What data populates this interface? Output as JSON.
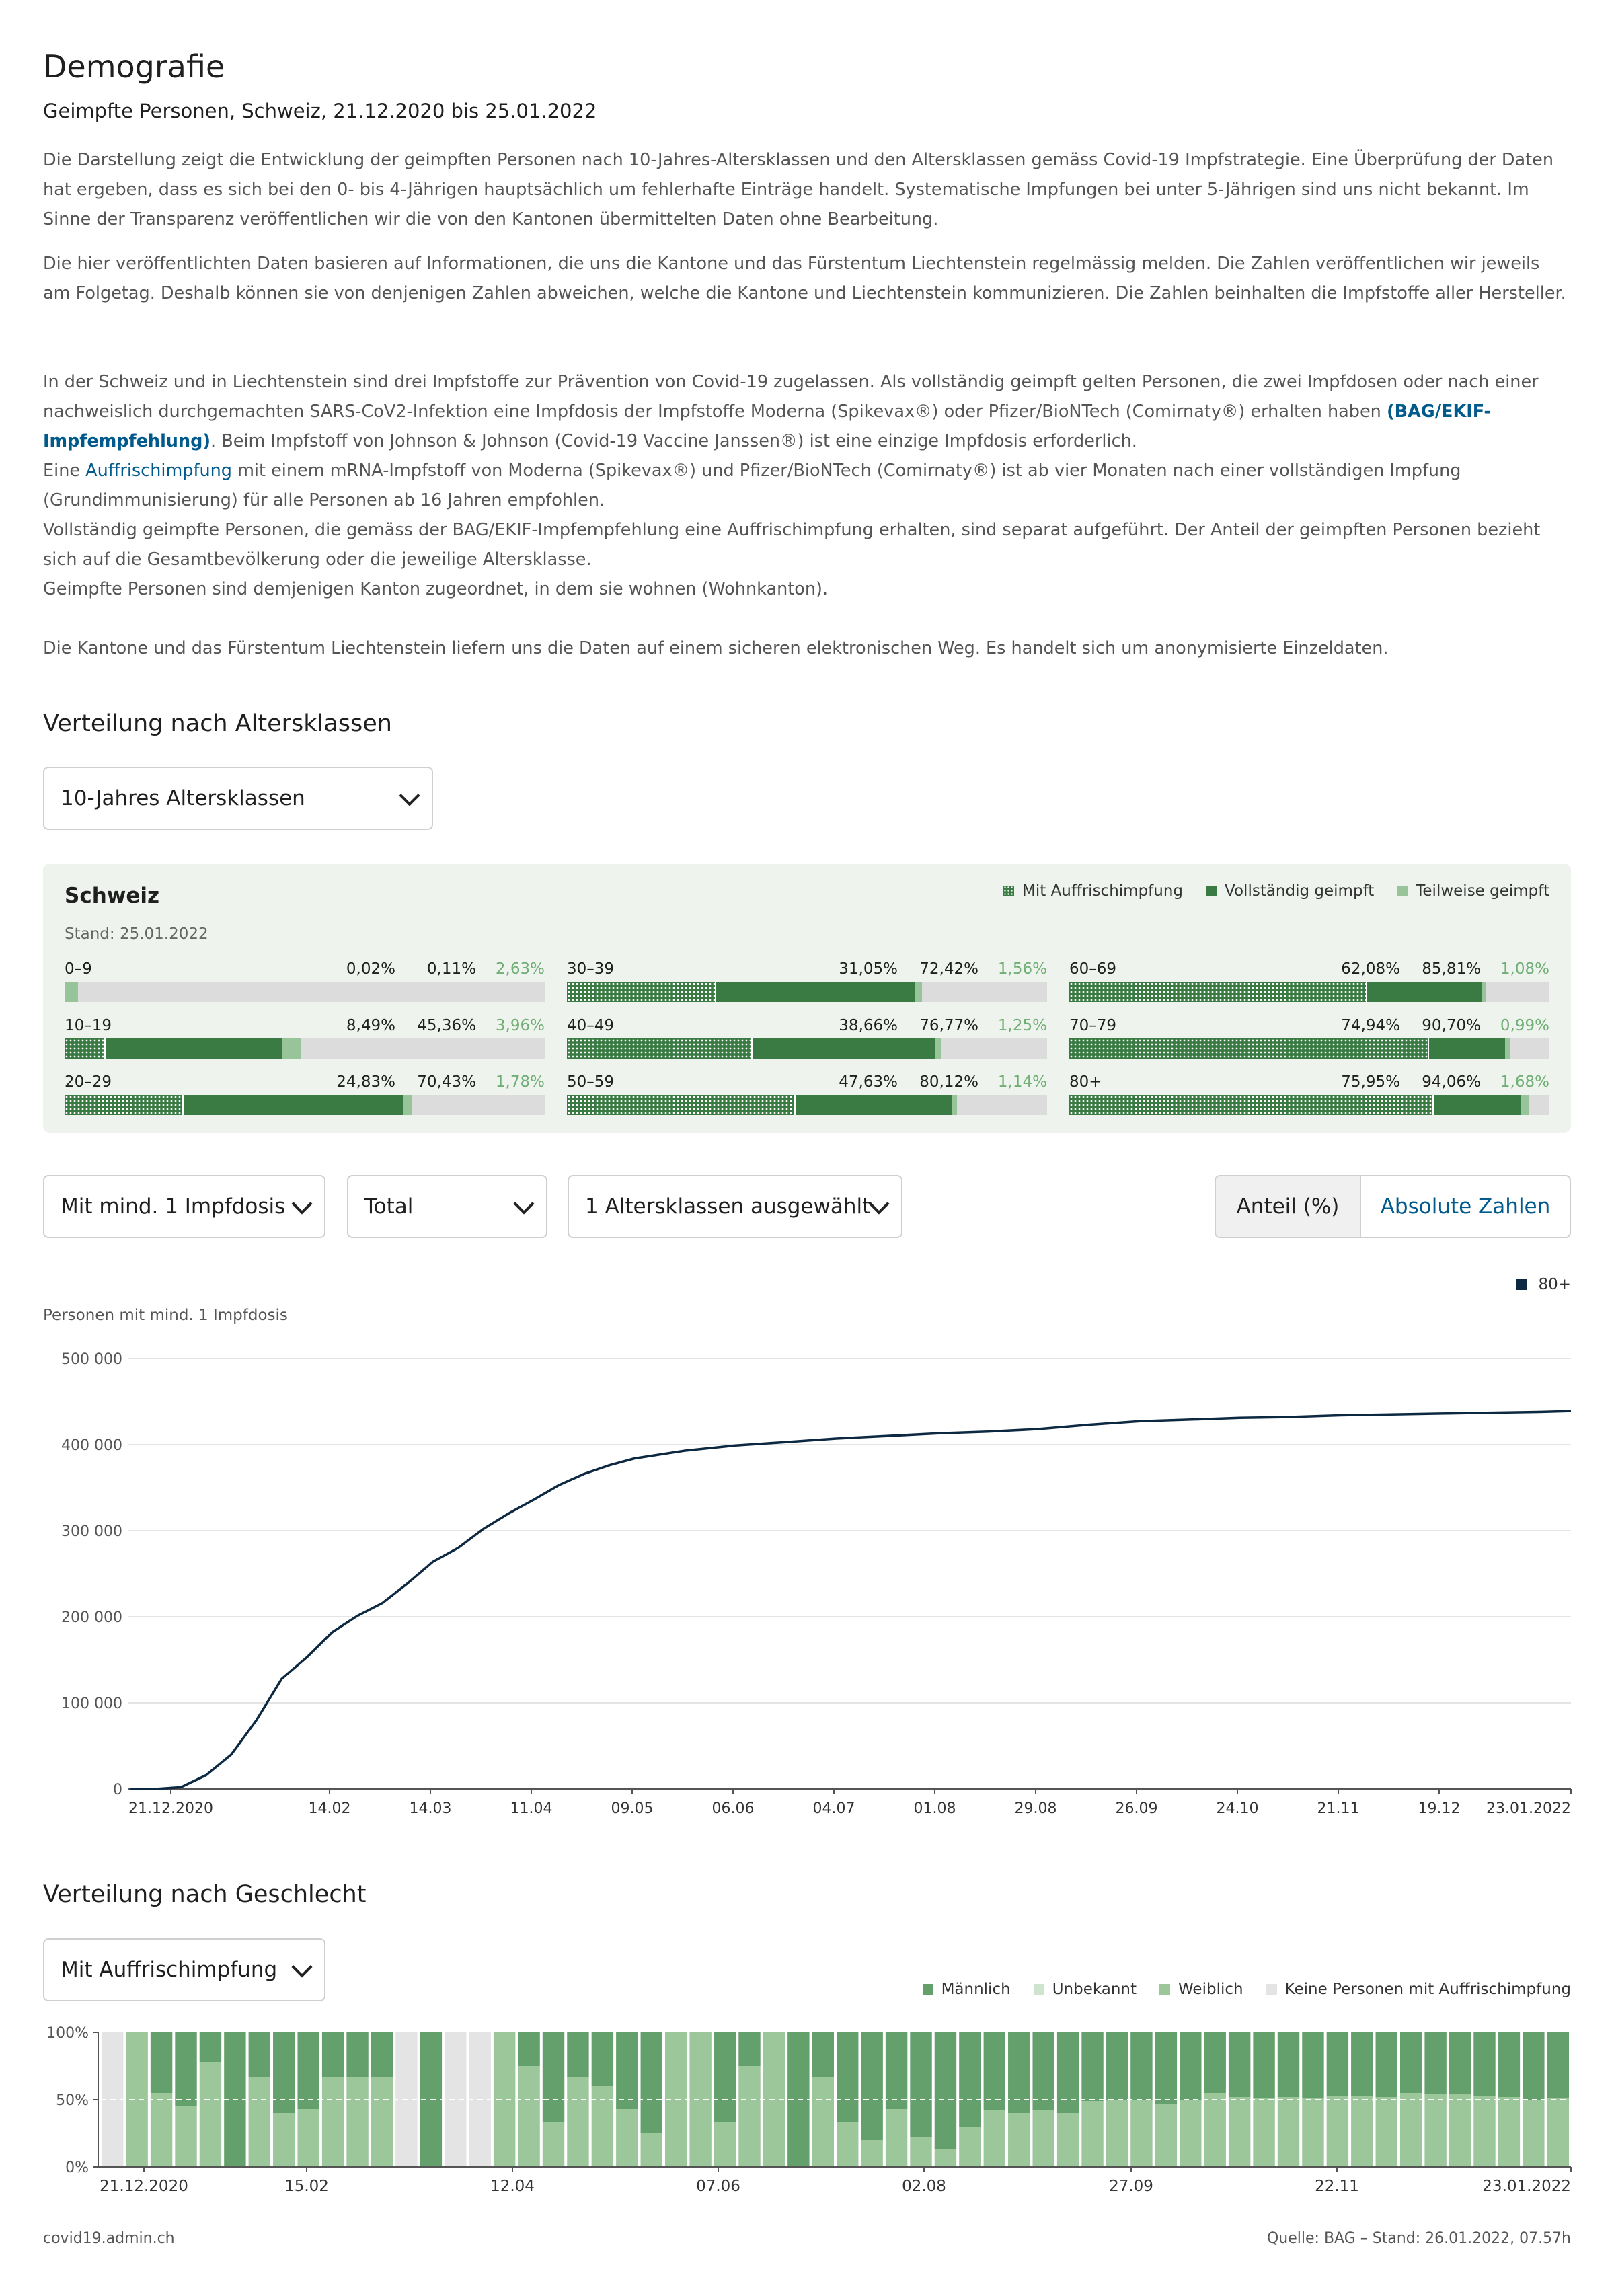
{
  "page": {
    "title": "Demografie",
    "subtitle": "Geimpfte Personen, Schweiz, 21.12.2020 bis 25.01.2022",
    "para1": "Die Darstellung zeigt die Entwicklung der geimpften Personen nach 10-Jahres-Altersklassen und den Altersklassen gemäss Covid-19 Impfstrategie. Eine Überprüfung der Daten hat ergeben, dass es sich bei den 0- bis 4-Jährigen hauptsächlich um fehlerhafte Einträge handelt. Systematische Impfungen bei unter 5-Jährigen sind uns nicht bekannt. Im Sinne der Transparenz veröffentlichen wir die von den Kantonen übermittelten Daten ohne Bearbeitung.",
    "para2": "Die hier veröffentlichten Daten basieren auf Informationen, die uns die Kantone und das Fürstentum Liechtenstein regelmässig melden. Die Zahlen veröffentlichen wir jeweils am Folgetag. Deshalb können sie von denjenigen Zahlen abweichen, welche die Kantone und Liechtenstein kommunizieren. Die Zahlen beinhalten die Impfstoffe aller Hersteller.",
    "para3_a": "In der Schweiz und in Liechtenstein sind drei Impfstoffe zur Prävention von Covid-19 zugelassen. Als vollständig geimpft gelten Personen, die zwei Impfdosen oder nach einer nachweislich durchgemachten SARS-CoV2-Infektion eine Impfdosis der Impfstoffe Moderna (Spikevax®) oder Pfizer/BioNTech (Comirnaty®) erhalten haben ",
    "para3_link": "(BAG/EKIF-Impfempfehlung)",
    "para3_b": ". Beim Impfstoff von Johnson & Johnson (Covid-19 Vaccine Janssen®) ist eine einzige Impfdosis erforderlich.",
    "para3_c": "Eine ",
    "para3_link2": "Auffrischimpfung",
    "para3_d": " mit einem mRNA-Impfstoff von Moderna (Spikevax®) und Pfizer/BioNTech (Comirnaty®) ist ab vier Monaten nach einer vollständigen Impfung (Grundimmunisierung) für alle Personen ab 16 Jahren empfohlen.",
    "para3_e": "Vollständig geimpfte Personen, die gemäss der BAG/EKIF-Impfempfehlung eine Auffrischimpfung erhalten, sind separat aufgeführt. Der Anteil der geimpften Personen bezieht sich auf die Gesamtbevölkerung oder die jeweilige Altersklasse.",
    "para3_f": "Geimpfte Personen sind demjenigen Kanton zugeordnet, in dem sie wohnen (Wohnkanton).",
    "para4": "Die Kantone und das Fürstentum Liechtenstein liefern uns die Daten auf einem sicheren elektronischen Weg. Es handelt sich um anonymisierte Einzeldaten."
  },
  "section_age": {
    "heading": "Verteilung nach Altersklassen",
    "select_value": "10-Jahres Altersklassen",
    "panel_title": "Schweiz",
    "stand": "Stand: 25.01.2022",
    "legend": {
      "boost": "Mit Auffrischimpfung",
      "full": "Vollständig geimpft",
      "part": "Teilweise geimpft"
    },
    "colors": {
      "full": "#3a7a43",
      "part": "#98c499",
      "empty": "#dcdcdc"
    },
    "groups": [
      {
        "label": "0–9",
        "boost": 0.02,
        "full": 0.11,
        "part": 2.63,
        "boost_t": "0,02%",
        "full_t": "0,11%",
        "part_t": "2,63%"
      },
      {
        "label": "30–39",
        "boost": 31.05,
        "full": 72.42,
        "part": 1.56,
        "boost_t": "31,05%",
        "full_t": "72,42%",
        "part_t": "1,56%"
      },
      {
        "label": "60–69",
        "boost": 62.08,
        "full": 85.81,
        "part": 1.08,
        "boost_t": "62,08%",
        "full_t": "85,81%",
        "part_t": "1,08%"
      },
      {
        "label": "10–19",
        "boost": 8.49,
        "full": 45.36,
        "part": 3.96,
        "boost_t": "8,49%",
        "full_t": "45,36%",
        "part_t": "3,96%"
      },
      {
        "label": "40–49",
        "boost": 38.66,
        "full": 76.77,
        "part": 1.25,
        "boost_t": "38,66%",
        "full_t": "76,77%",
        "part_t": "1,25%"
      },
      {
        "label": "70–79",
        "boost": 74.94,
        "full": 90.7,
        "part": 0.99,
        "boost_t": "74,94%",
        "full_t": "90,70%",
        "part_t": "0,99%"
      },
      {
        "label": "20–29",
        "boost": 24.83,
        "full": 70.43,
        "part": 1.78,
        "boost_t": "24,83%",
        "full_t": "70,43%",
        "part_t": "1,78%"
      },
      {
        "label": "50–59",
        "boost": 47.63,
        "full": 80.12,
        "part": 1.14,
        "boost_t": "47,63%",
        "full_t": "80,12%",
        "part_t": "1,14%"
      },
      {
        "label": "80+",
        "boost": 75.95,
        "full": 94.06,
        "part": 1.68,
        "boost_t": "75,95%",
        "full_t": "94,06%",
        "part_t": "1,68%"
      }
    ]
  },
  "filters": {
    "dose": "Mit mind. 1 Impfdosis",
    "total": "Total",
    "ages": "1 Altersklassen ausgewählt",
    "toggle_a": "Anteil (%)",
    "toggle_b": "Absolute Zahlen"
  },
  "section_sex": {
    "heading": "Verteilung nach Geschlecht",
    "select_value": "Mit Auffrischimpfung",
    "legend": {
      "m": "Männlich",
      "u": "Unbekannt",
      "w": "Weiblich",
      "k": "Keine Personen mit Auffrischimpfung"
    },
    "colors": {
      "m": "#64a06b",
      "u": "#cfe4cd",
      "w": "#9cc79b",
      "k": "#e4e4e4"
    }
  },
  "footer": {
    "left": "covid19.admin.ch",
    "right": "Quelle: BAG – Stand: 26.01.2022, 07.57h"
  },
  "chart_data": [
    {
      "type": "line",
      "title": "",
      "ylabel": "Personen mit mind. 1 Impfdosis",
      "ylim": [
        0,
        500000
      ],
      "yticks": [
        "0",
        "100 000",
        "200 000",
        "300 000",
        "400 000",
        "500 000"
      ],
      "xticks": [
        "21.12.2020",
        "14.02",
        "14.03",
        "11.04",
        "09.05",
        "06.06",
        "04.07",
        "01.08",
        "29.08",
        "26.09",
        "24.10",
        "21.11",
        "19.12",
        "23.01.2022"
      ],
      "legend_position": "top-right",
      "series": [
        {
          "name": "80+",
          "color": "#0d2841",
          "x": [
            "2020-12-21",
            "2020-12-28",
            "2021-01-04",
            "2021-01-11",
            "2021-01-18",
            "2021-01-25",
            "2021-02-01",
            "2021-02-08",
            "2021-02-15",
            "2021-02-22",
            "2021-03-01",
            "2021-03-08",
            "2021-03-15",
            "2021-03-22",
            "2021-03-29",
            "2021-04-05",
            "2021-04-12",
            "2021-04-19",
            "2021-04-26",
            "2021-05-03",
            "2021-05-10",
            "2021-05-24",
            "2021-06-07",
            "2021-06-21",
            "2021-07-05",
            "2021-07-19",
            "2021-08-02",
            "2021-08-16",
            "2021-08-30",
            "2021-09-13",
            "2021-09-27",
            "2021-10-11",
            "2021-10-25",
            "2021-11-08",
            "2021-11-22",
            "2021-12-06",
            "2021-12-20",
            "2022-01-03",
            "2022-01-17",
            "2022-01-25"
          ],
          "values": [
            0,
            0,
            2000,
            16000,
            40000,
            80000,
            128000,
            153000,
            182000,
            201000,
            216000,
            239000,
            264000,
            280000,
            302000,
            320000,
            336000,
            353000,
            366000,
            376000,
            384000,
            393000,
            399000,
            403000,
            407000,
            410000,
            413000,
            415000,
            418000,
            423000,
            427000,
            429000,
            431000,
            432000,
            434000,
            435000,
            436000,
            437000,
            438000,
            439000
          ]
        }
      ]
    },
    {
      "type": "bar",
      "title": "",
      "stacked": true,
      "ylim": [
        0,
        100
      ],
      "yticks": [
        "0%",
        "50%",
        "100%"
      ],
      "xticks": [
        "21.12.2020",
        "15.02",
        "12.04",
        "07.06",
        "02.08",
        "27.09",
        "22.11",
        "23.01.2022"
      ],
      "legend_position": "top-right",
      "series_names": [
        "Männlich",
        "Unbekannt",
        "Weiblich",
        "Keine Personen mit Auffrischimpfung"
      ],
      "weeks_male_share": [
        null,
        0,
        45,
        55,
        22,
        100,
        33,
        60,
        57,
        33,
        33,
        33,
        null,
        100,
        null,
        null,
        0,
        25,
        67,
        33,
        40,
        57,
        75,
        0,
        0,
        67,
        25,
        0,
        100,
        33,
        67,
        80,
        57,
        78,
        87,
        70,
        58,
        60,
        58,
        60,
        51,
        50,
        50,
        53,
        50,
        45,
        48,
        49,
        48,
        49,
        47,
        47,
        48,
        45,
        46,
        46,
        47,
        48,
        50,
        49
      ]
    }
  ]
}
